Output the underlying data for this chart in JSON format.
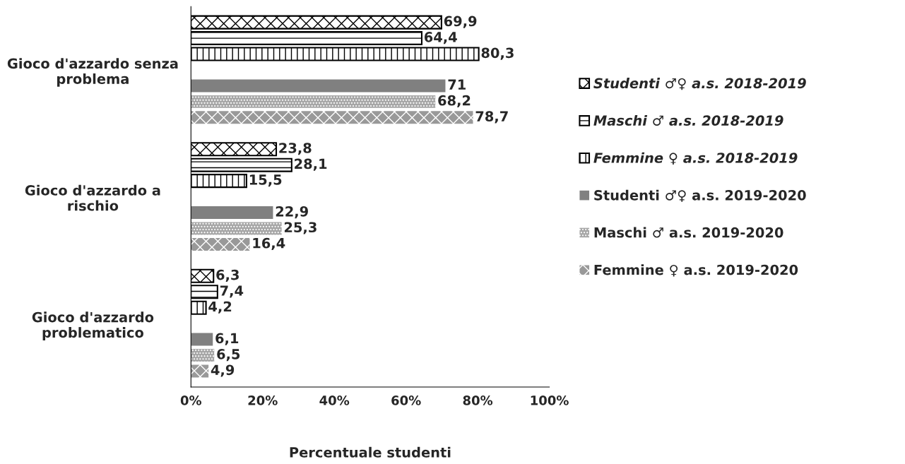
{
  "chart_data": {
    "type": "bar",
    "orientation": "horizontal",
    "categories": [
      "Gioco d'azzardo senza problema",
      "Gioco d'azzardo a rischio",
      "Gioco d'azzardo problematico"
    ],
    "xlabel": "Percentuale studenti",
    "xlim": [
      0,
      100
    ],
    "xticks": [
      {
        "value": 0,
        "label": "0%"
      },
      {
        "value": 20,
        "label": "20%"
      },
      {
        "value": 40,
        "label": "40%"
      },
      {
        "value": 60,
        "label": "60%"
      },
      {
        "value": 80,
        "label": "80%"
      },
      {
        "value": 100,
        "label": "100%"
      }
    ],
    "legend": "right",
    "grid": false,
    "series": [
      {
        "name": "Studenti ♂♀ a.s. 2018-2019",
        "color": "#000000",
        "values": [
          69.9,
          23.8,
          6.3
        ],
        "value_labels": [
          "69,9",
          "23,8",
          "6,3"
        ]
      },
      {
        "name": "Maschi ♂ a.s. 2018-2019",
        "color": "#000000",
        "values": [
          64.4,
          28.1,
          7.4
        ],
        "value_labels": [
          "64,4",
          "28,1",
          "7,4"
        ]
      },
      {
        "name": "Femmine ♀ a.s. 2018-2019",
        "color": "#000000",
        "values": [
          80.3,
          15.5,
          4.2
        ],
        "value_labels": [
          "80,3",
          "15,5",
          "4,2"
        ]
      },
      {
        "name": "Studenti ♂♀ a.s. 2019-2020",
        "color": "#808080",
        "values": [
          71,
          22.9,
          6.1
        ],
        "value_labels": [
          "71",
          "22,9",
          "6,1"
        ]
      },
      {
        "name": "Maschi ♂ a.s. 2019-2020",
        "color": "#a6a6a6",
        "values": [
          68.2,
          25.3,
          6.5
        ],
        "value_labels": [
          "68,2",
          "25,3",
          "6,5"
        ]
      },
      {
        "name": "Femmine ♀ a.s. 2019-2020",
        "color": "#999999",
        "values": [
          78.7,
          16.4,
          4.9
        ],
        "value_labels": [
          "78,7",
          "16,4",
          "4,9"
        ]
      }
    ]
  }
}
